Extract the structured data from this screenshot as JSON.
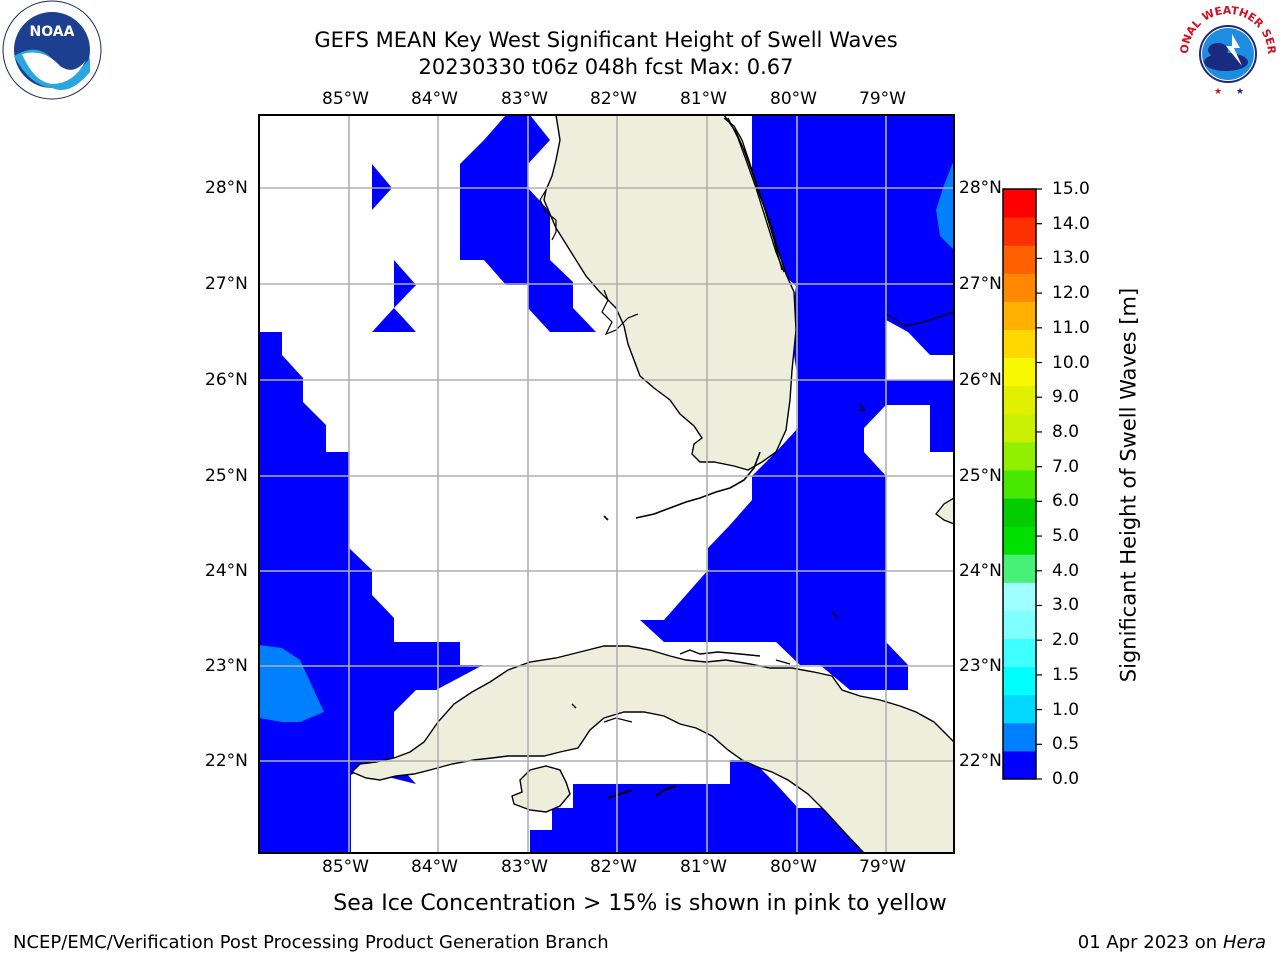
{
  "header": {
    "title_line1": "GEFS MEAN Key West Significant Height of Swell Waves",
    "title_line2": "20230330 t06z 048h fcst   Max: 0.67",
    "left_logo_text": "NOAA",
    "right_logo_text": "NATIONAL WEATHER SERVICE"
  },
  "map": {
    "lon_labels": [
      "85°W",
      "84°W",
      "83°W",
      "82°W",
      "81°W",
      "80°W",
      "79°W"
    ],
    "lat_labels": [
      "28°N",
      "27°N",
      "26°N",
      "25°N",
      "24°N",
      "23°N",
      "22°N"
    ],
    "land_color": "#eeeedd",
    "ocean_no_data_color": "#ffffff",
    "grid_color": "#b0b0b0"
  },
  "colorbar": {
    "title": "Significant Height of Swell Waves [m]",
    "tick_labels": [
      "15.0",
      "14.0",
      "13.0",
      "12.0",
      "11.0",
      "10.0",
      "9.0",
      "8.0",
      "7.0",
      "6.0",
      "5.0",
      "4.0",
      "3.0",
      "2.0",
      "1.5",
      "1.0",
      "0.5",
      "0.0"
    ],
    "colors_bottom_to_top": [
      "#0000ff",
      "#0080ff",
      "#00d8ff",
      "#00ffff",
      "#40ffff",
      "#80ffff",
      "#a0ffff",
      "#48f078",
      "#00e000",
      "#00cc00",
      "#48e800",
      "#90f000",
      "#c8f000",
      "#e0f000",
      "#f8f800",
      "#ffd800",
      "#ffb000",
      "#ff8800",
      "#ff6000",
      "#ff3000",
      "#ff0000"
    ]
  },
  "footer": {
    "subtitle": "Sea Ice Concentration > 15% is shown in pink to yellow",
    "left": "NCEP/EMC/Verification Post Processing Product Generation Branch",
    "right_date": "01 Apr 2023 on ",
    "right_host": "Hera"
  }
}
